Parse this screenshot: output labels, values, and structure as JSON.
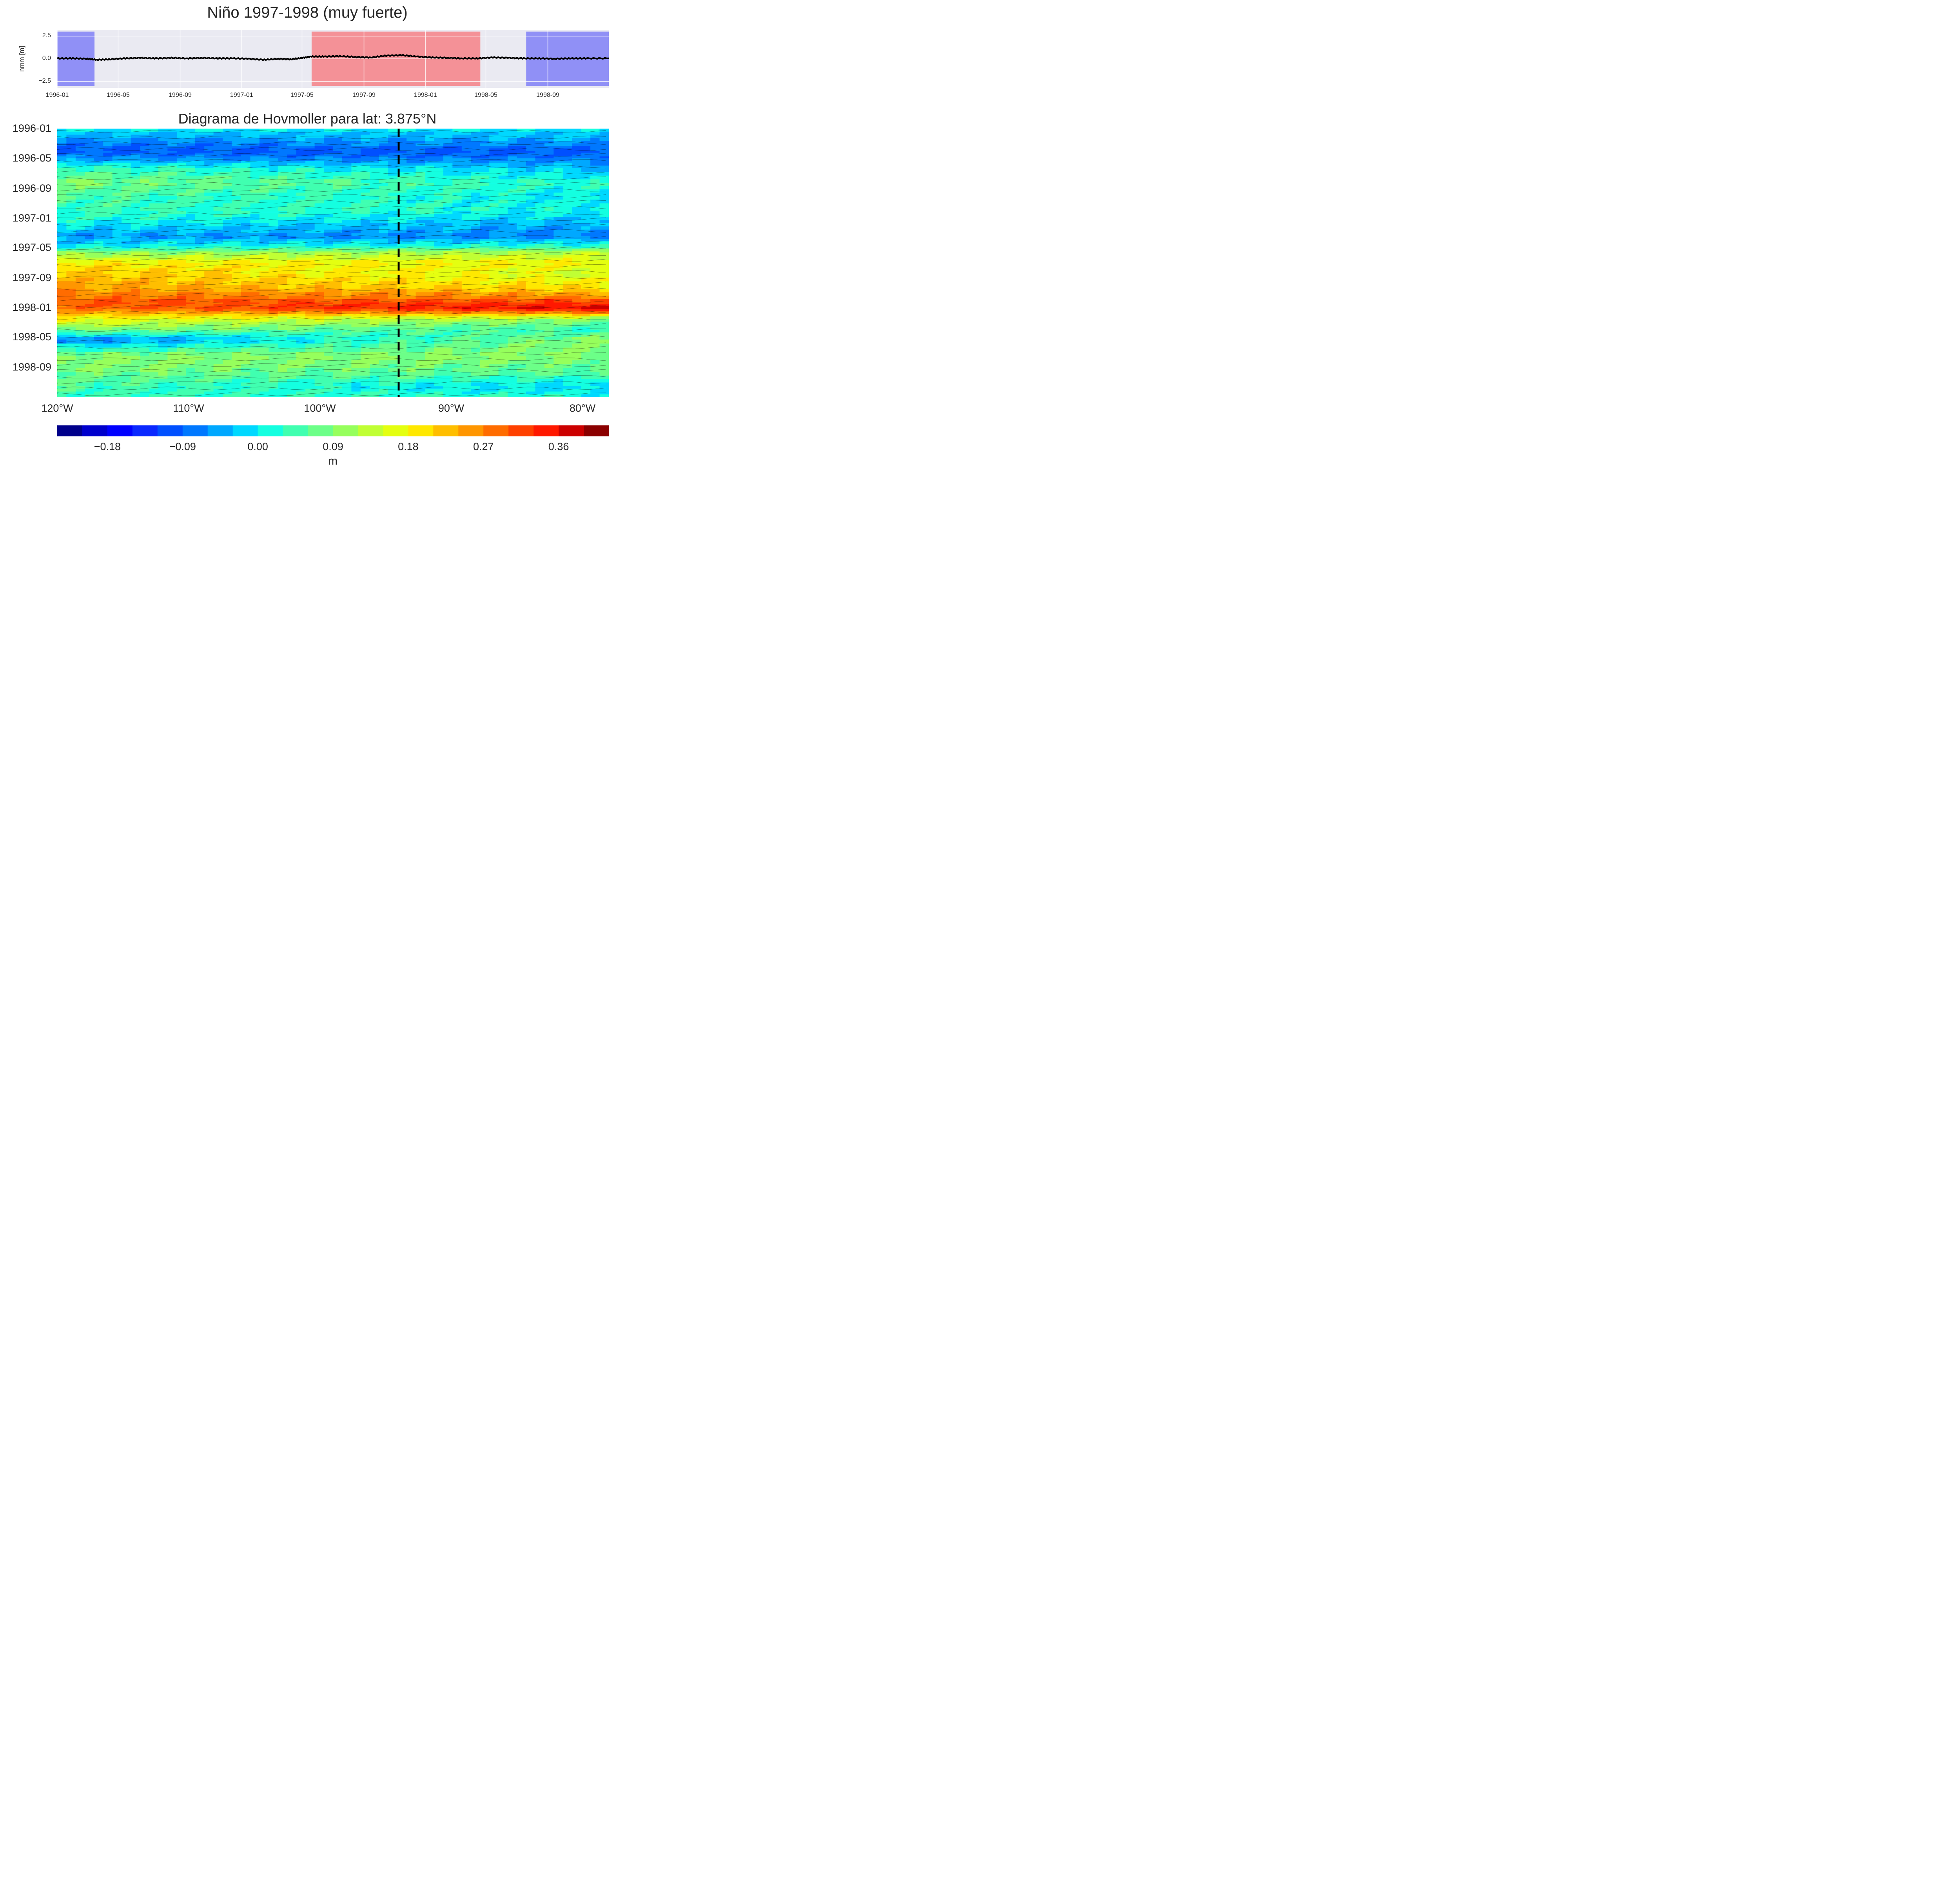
{
  "chart_data": [
    {
      "type": "line",
      "title": "Niño 1997-1998 (muy fuerte)",
      "ylabel": "nmm [m]",
      "xlabel": "",
      "xlim": [
        "1996-01-01",
        "1998-12-31"
      ],
      "ylim": [
        -3.2,
        3.2
      ],
      "yticks": [
        "−2.5",
        "0.0",
        "2.5"
      ],
      "ytick_values": [
        -2.5,
        0,
        2.5
      ],
      "xticks": [
        "1996-01",
        "1996-05",
        "1996-09",
        "1997-01",
        "1997-05",
        "1997-09",
        "1998-01",
        "1998-05",
        "1998-09"
      ],
      "grid": true,
      "background": "#eaeaf2",
      "line_color": "#000000",
      "shaded_periods": [
        {
          "start": "1996-01-01",
          "end": "1996-03-15",
          "color": "#8b8bf6"
        },
        {
          "start": "1997-05-20",
          "end": "1998-04-20",
          "color": "#f48c91"
        },
        {
          "start": "1998-07-20",
          "end": "1998-12-31",
          "color": "#8b8bf6"
        }
      ],
      "series": [
        {
          "x": [
            "1996-01-01",
            "1996-02-01",
            "1996-03-01",
            "1996-03-20",
            "1996-04-15",
            "1996-05-15",
            "1996-06-15",
            "1996-07-15",
            "1996-08-15",
            "1996-09-15",
            "1996-10-15",
            "1996-11-15",
            "1996-12-15",
            "1997-01-15",
            "1997-02-15",
            "1997-03-15",
            "1997-04-10",
            "1997-05-01",
            "1997-05-20",
            "1997-06-15",
            "1997-07-15",
            "1997-08-15",
            "1997-09-15",
            "1997-10-15",
            "1997-11-15",
            "1997-12-15",
            "1998-01-15",
            "1998-02-15",
            "1998-03-15",
            "1998-04-15",
            "1998-05-15",
            "1998-06-15",
            "1998-07-15",
            "1998-08-15",
            "1998-09-15",
            "1998-10-15",
            "1998-11-15",
            "1998-12-31"
          ],
          "values": [
            0.05,
            0.05,
            0.0,
            -0.1,
            -0.05,
            0.05,
            0.1,
            0.05,
            0.1,
            0.05,
            0.1,
            0.05,
            0.05,
            0.0,
            -0.1,
            0.0,
            -0.05,
            0.1,
            0.25,
            0.25,
            0.3,
            0.2,
            0.15,
            0.35,
            0.4,
            0.25,
            0.15,
            0.1,
            0.05,
            0.05,
            0.15,
            0.1,
            0.05,
            0.05,
            0.0,
            0.05,
            0.05,
            0.05
          ]
        }
      ]
    },
    {
      "type": "heatmap",
      "title": "Diagrama de Hovmoller para lat: 3.875°N",
      "xlabel": "",
      "ylabel": "",
      "xlim": [
        -120,
        -78
      ],
      "ylim": [
        "1996-01-01",
        "1998-12-31"
      ],
      "y_inverted": true,
      "xticks": [
        "120°W",
        "110°W",
        "100°W",
        "90°W",
        "80°W"
      ],
      "xtick_values": [
        -120,
        -110,
        -100,
        -90,
        -80
      ],
      "yticks": [
        "1996-01",
        "1996-05",
        "1996-09",
        "1997-01",
        "1997-05",
        "1997-09",
        "1998-01",
        "1998-05",
        "1998-09"
      ],
      "vertical_line": {
        "lon": -94.0,
        "style": "dashed",
        "color": "#000000"
      },
      "bands": [
        {
          "date": "1996-01-01",
          "west": 0.0,
          "east": 0.0
        },
        {
          "date": "1996-02-20",
          "west": -0.06,
          "east": -0.05
        },
        {
          "date": "1996-04-01",
          "west": -0.1,
          "east": -0.1
        },
        {
          "date": "1996-05-01",
          "west": -0.06,
          "east": -0.08
        },
        {
          "date": "1996-06-10",
          "west": 0.04,
          "east": -0.03
        },
        {
          "date": "1996-08-10",
          "west": 0.09,
          "east": 0.02
        },
        {
          "date": "1996-10-01",
          "west": 0.05,
          "east": 0.0
        },
        {
          "date": "1996-12-01",
          "west": 0.04,
          "east": 0.01
        },
        {
          "date": "1997-01-20",
          "west": 0.01,
          "east": -0.04
        },
        {
          "date": "1997-03-15",
          "west": -0.05,
          "east": -0.07
        },
        {
          "date": "1997-04-25",
          "west": 0.0,
          "east": 0.03
        },
        {
          "date": "1997-05-20",
          "west": 0.09,
          "east": 0.13
        },
        {
          "date": "1997-07-01",
          "west": 0.19,
          "east": 0.18
        },
        {
          "date": "1997-08-15",
          "west": 0.22,
          "east": 0.15
        },
        {
          "date": "1997-10-15",
          "west": 0.25,
          "east": 0.2
        },
        {
          "date": "1997-12-10",
          "west": 0.3,
          "east": 0.33
        },
        {
          "date": "1998-01-05",
          "west": 0.28,
          "east": 0.37
        },
        {
          "date": "1998-02-15",
          "west": 0.18,
          "east": 0.1
        },
        {
          "date": "1998-04-01",
          "west": 0.09,
          "east": 0.03
        },
        {
          "date": "1998-05-10",
          "west": -0.08,
          "east": 0.1
        },
        {
          "date": "1998-07-15",
          "west": 0.1,
          "east": 0.09
        },
        {
          "date": "1998-09-20",
          "west": 0.08,
          "east": 0.06
        },
        {
          "date": "1998-11-15",
          "west": 0.05,
          "east": -0.02
        },
        {
          "date": "1998-12-31",
          "west": 0.04,
          "east": 0.02
        }
      ]
    },
    {
      "type": "colorbar",
      "label": "m",
      "vmin": -0.24,
      "vmax": 0.42,
      "levels": [
        -0.24,
        -0.21,
        -0.18,
        -0.15,
        -0.12,
        -0.09,
        -0.06,
        -0.03,
        0.0,
        0.03,
        0.06,
        0.09,
        0.12,
        0.15,
        0.18,
        0.21,
        0.24,
        0.27,
        0.3,
        0.33,
        0.36,
        0.39,
        0.42
      ],
      "ticks": [
        "−0.18",
        "−0.09",
        "0.00",
        "0.09",
        "0.18",
        "0.27",
        "0.36"
      ],
      "tick_values": [
        -0.18,
        -0.09,
        0.0,
        0.09,
        0.18,
        0.27,
        0.36
      ],
      "colors": [
        "#00008b",
        "#0000cd",
        "#0000ff",
        "#0a28ff",
        "#0050ff",
        "#0078ff",
        "#00a8ff",
        "#00d8ff",
        "#14ffe0",
        "#40ffb0",
        "#6cff88",
        "#96ff5c",
        "#c0ff34",
        "#e4ff10",
        "#ffe800",
        "#ffbe00",
        "#ff9600",
        "#ff6c00",
        "#ff4000",
        "#ff1800",
        "#cc0000",
        "#8b0000"
      ]
    }
  ]
}
